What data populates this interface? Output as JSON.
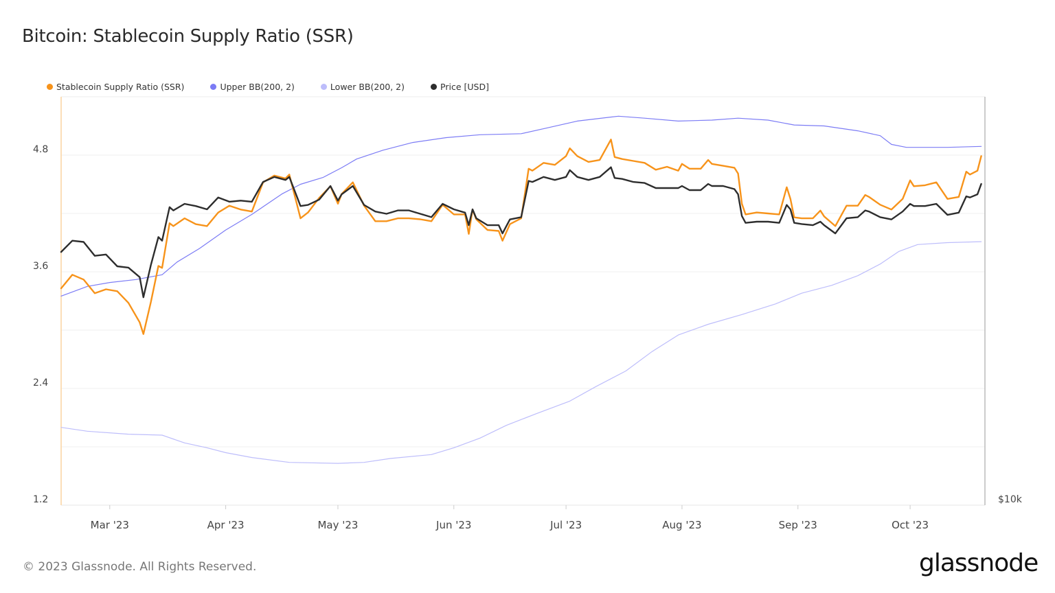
{
  "chart_data": {
    "type": "line",
    "title": "Bitcoin: Stablecoin Supply Ratio (SSR)",
    "xlim": [
      "2023-02-16",
      "2023-10-21"
    ],
    "x_ticks": [
      {
        "date": "2023-03-01",
        "label": "Mar '23"
      },
      {
        "date": "2023-04-01",
        "label": "Apr '23"
      },
      {
        "date": "2023-05-01",
        "label": "May '23"
      },
      {
        "date": "2023-06-01",
        "label": "Jun '23"
      },
      {
        "date": "2023-07-01",
        "label": "Jul '23"
      },
      {
        "date": "2023-08-01",
        "label": "Aug '23"
      },
      {
        "date": "2023-09-01",
        "label": "Sep '23"
      },
      {
        "date": "2023-10-01",
        "label": "Oct '23"
      }
    ],
    "y_left": {
      "ylim": [
        1.2,
        5.4
      ],
      "ticks": [
        1.2,
        2.4,
        3.6,
        4.8
      ],
      "tick_labels": [
        "1.2",
        "2.4",
        "3.6",
        "4.8"
      ],
      "grid_step": 0.6
    },
    "y_right": {
      "scale": "log",
      "ylim": [
        10000,
        39400
      ],
      "tick_labels": [
        "$10k"
      ]
    },
    "grid": true,
    "legend_position": "top-left",
    "series": [
      {
        "name": "Upper BB(200, 2)",
        "color": "#7b7bf5",
        "axis": "left",
        "x": [
          "2023-02-16",
          "2023-02-23",
          "2023-03-01",
          "2023-03-08",
          "2023-03-15",
          "2023-03-19",
          "2023-03-25",
          "2023-04-01",
          "2023-04-08",
          "2023-04-16",
          "2023-04-21",
          "2023-04-27",
          "2023-05-02",
          "2023-05-06",
          "2023-05-13",
          "2023-05-21",
          "2023-05-30",
          "2023-06-08",
          "2023-06-19",
          "2023-06-26",
          "2023-07-04",
          "2023-07-15",
          "2023-07-22",
          "2023-07-31",
          "2023-08-09",
          "2023-08-16",
          "2023-08-24",
          "2023-08-31",
          "2023-09-08",
          "2023-09-17",
          "2023-09-23",
          "2023-09-26",
          "2023-09-30",
          "2023-10-11",
          "2023-10-20"
        ],
        "y": [
          3.35,
          3.45,
          3.49,
          3.52,
          3.57,
          3.7,
          3.84,
          4.03,
          4.19,
          4.4,
          4.5,
          4.57,
          4.67,
          4.76,
          4.85,
          4.93,
          4.98,
          5.01,
          5.02,
          5.08,
          5.15,
          5.2,
          5.18,
          5.15,
          5.16,
          5.18,
          5.16,
          5.11,
          5.1,
          5.05,
          5.0,
          4.91,
          4.88,
          4.88,
          4.89
        ]
      },
      {
        "name": "Lower BB(200, 2)",
        "color": "#bdbdfb",
        "axis": "left",
        "x": [
          "2023-02-16",
          "2023-02-23",
          "2023-03-06",
          "2023-03-15",
          "2023-03-21",
          "2023-03-27",
          "2023-04-01",
          "2023-04-08",
          "2023-04-18",
          "2023-05-01",
          "2023-05-08",
          "2023-05-15",
          "2023-05-26",
          "2023-06-01",
          "2023-06-08",
          "2023-06-15",
          "2023-06-23",
          "2023-07-02",
          "2023-07-09",
          "2023-07-17",
          "2023-07-24",
          "2023-07-31",
          "2023-08-08",
          "2023-08-17",
          "2023-08-26",
          "2023-09-02",
          "2023-09-10",
          "2023-09-17",
          "2023-09-23",
          "2023-09-28",
          "2023-10-03",
          "2023-10-11",
          "2023-10-20"
        ],
        "y": [
          2.0,
          1.96,
          1.93,
          1.92,
          1.84,
          1.79,
          1.74,
          1.69,
          1.64,
          1.63,
          1.64,
          1.68,
          1.72,
          1.79,
          1.89,
          2.02,
          2.14,
          2.27,
          2.42,
          2.58,
          2.78,
          2.95,
          3.06,
          3.16,
          3.27,
          3.38,
          3.46,
          3.56,
          3.68,
          3.81,
          3.88,
          3.9,
          3.91
        ]
      },
      {
        "name": "Stablecoin Supply Ratio (SSR)",
        "color": "#f7931a",
        "axis": "left",
        "x": [
          "2023-02-16",
          "2023-02-19",
          "2023-02-22",
          "2023-02-25",
          "2023-02-28",
          "2023-03-03",
          "2023-03-06",
          "2023-03-09",
          "2023-03-10",
          "2023-03-12",
          "2023-03-14",
          "2023-03-15",
          "2023-03-17",
          "2023-03-18",
          "2023-03-21",
          "2023-03-24",
          "2023-03-27",
          "2023-03-30",
          "2023-04-02",
          "2023-04-05",
          "2023-04-08",
          "2023-04-11",
          "2023-04-14",
          "2023-04-17",
          "2023-04-18",
          "2023-04-20",
          "2023-04-21",
          "2023-04-23",
          "2023-04-26",
          "2023-04-29",
          "2023-05-01",
          "2023-05-02",
          "2023-05-05",
          "2023-05-08",
          "2023-05-11",
          "2023-05-14",
          "2023-05-17",
          "2023-05-20",
          "2023-05-23",
          "2023-05-26",
          "2023-05-29",
          "2023-06-01",
          "2023-06-04",
          "2023-06-05",
          "2023-06-06",
          "2023-06-07",
          "2023-06-10",
          "2023-06-13",
          "2023-06-14",
          "2023-06-16",
          "2023-06-19",
          "2023-06-21",
          "2023-06-22",
          "2023-06-25",
          "2023-06-28",
          "2023-07-01",
          "2023-07-02",
          "2023-07-04",
          "2023-07-07",
          "2023-07-10",
          "2023-07-13",
          "2023-07-14",
          "2023-07-16",
          "2023-07-19",
          "2023-07-22",
          "2023-07-25",
          "2023-07-28",
          "2023-07-31",
          "2023-08-01",
          "2023-08-03",
          "2023-08-06",
          "2023-08-08",
          "2023-08-09",
          "2023-08-12",
          "2023-08-15",
          "2023-08-16",
          "2023-08-17",
          "2023-08-18",
          "2023-08-21",
          "2023-08-24",
          "2023-08-27",
          "2023-08-29",
          "2023-08-30",
          "2023-08-31",
          "2023-09-02",
          "2023-09-05",
          "2023-09-07",
          "2023-09-08",
          "2023-09-11",
          "2023-09-14",
          "2023-09-17",
          "2023-09-19",
          "2023-09-20",
          "2023-09-23",
          "2023-09-26",
          "2023-09-29",
          "2023-10-01",
          "2023-10-02",
          "2023-10-05",
          "2023-10-08",
          "2023-10-11",
          "2023-10-14",
          "2023-10-16",
          "2023-10-17",
          "2023-10-19",
          "2023-10-20"
        ],
        "y": [
          3.43,
          3.57,
          3.52,
          3.38,
          3.42,
          3.4,
          3.28,
          3.08,
          2.96,
          3.29,
          3.66,
          3.64,
          4.1,
          4.07,
          4.15,
          4.09,
          4.07,
          4.21,
          4.28,
          4.24,
          4.22,
          4.52,
          4.59,
          4.56,
          4.6,
          4.3,
          4.15,
          4.21,
          4.36,
          4.48,
          4.3,
          4.4,
          4.52,
          4.28,
          4.12,
          4.12,
          4.15,
          4.15,
          4.14,
          4.12,
          4.29,
          4.19,
          4.19,
          3.99,
          4.24,
          4.14,
          4.03,
          4.02,
          3.92,
          4.09,
          4.15,
          4.66,
          4.64,
          4.72,
          4.7,
          4.79,
          4.87,
          4.79,
          4.73,
          4.75,
          4.96,
          4.78,
          4.76,
          4.74,
          4.72,
          4.65,
          4.68,
          4.64,
          4.71,
          4.66,
          4.66,
          4.75,
          4.71,
          4.69,
          4.67,
          4.61,
          4.3,
          4.19,
          4.21,
          4.2,
          4.19,
          4.47,
          4.35,
          4.16,
          4.15,
          4.15,
          4.23,
          4.17,
          4.07,
          4.28,
          4.28,
          4.39,
          4.37,
          4.29,
          4.24,
          4.35,
          4.54,
          4.48,
          4.49,
          4.52,
          4.35,
          4.37,
          4.63,
          4.6,
          4.64,
          4.79
        ]
      },
      {
        "name": "Price [USD]",
        "color": "#2d2d2d",
        "axis": "right",
        "x": [
          "2023-02-16",
          "2023-02-19",
          "2023-02-22",
          "2023-02-25",
          "2023-02-28",
          "2023-03-03",
          "2023-03-06",
          "2023-03-09",
          "2023-03-10",
          "2023-03-12",
          "2023-03-14",
          "2023-03-15",
          "2023-03-17",
          "2023-03-18",
          "2023-03-21",
          "2023-03-24",
          "2023-03-27",
          "2023-03-30",
          "2023-04-02",
          "2023-04-05",
          "2023-04-08",
          "2023-04-11",
          "2023-04-14",
          "2023-04-17",
          "2023-04-18",
          "2023-04-20",
          "2023-04-21",
          "2023-04-23",
          "2023-04-26",
          "2023-04-29",
          "2023-05-01",
          "2023-05-02",
          "2023-05-05",
          "2023-05-08",
          "2023-05-11",
          "2023-05-14",
          "2023-05-17",
          "2023-05-20",
          "2023-05-23",
          "2023-05-26",
          "2023-05-29",
          "2023-06-01",
          "2023-06-04",
          "2023-06-05",
          "2023-06-06",
          "2023-06-07",
          "2023-06-10",
          "2023-06-13",
          "2023-06-14",
          "2023-06-16",
          "2023-06-19",
          "2023-06-21",
          "2023-06-22",
          "2023-06-25",
          "2023-06-28",
          "2023-07-01",
          "2023-07-02",
          "2023-07-04",
          "2023-07-07",
          "2023-07-10",
          "2023-07-13",
          "2023-07-14",
          "2023-07-16",
          "2023-07-19",
          "2023-07-22",
          "2023-07-25",
          "2023-07-28",
          "2023-07-31",
          "2023-08-01",
          "2023-08-03",
          "2023-08-06",
          "2023-08-08",
          "2023-08-09",
          "2023-08-12",
          "2023-08-15",
          "2023-08-16",
          "2023-08-17",
          "2023-08-18",
          "2023-08-21",
          "2023-08-24",
          "2023-08-27",
          "2023-08-29",
          "2023-08-30",
          "2023-08-31",
          "2023-09-02",
          "2023-09-05",
          "2023-09-07",
          "2023-09-08",
          "2023-09-11",
          "2023-09-14",
          "2023-09-17",
          "2023-09-19",
          "2023-09-20",
          "2023-09-23",
          "2023-09-26",
          "2023-09-29",
          "2023-10-01",
          "2023-10-02",
          "2023-10-05",
          "2023-10-08",
          "2023-10-11",
          "2023-10-14",
          "2023-10-16",
          "2023-10-17",
          "2023-10-19",
          "2023-10-20"
        ],
        "y": [
          23400,
          24300,
          24200,
          23100,
          23200,
          22300,
          22200,
          21500,
          20100,
          22400,
          24600,
          24300,
          27200,
          26900,
          27500,
          27300,
          27000,
          28100,
          27700,
          27800,
          27700,
          29600,
          30100,
          29800,
          30100,
          28200,
          27300,
          27400,
          27900,
          29200,
          27800,
          28400,
          29200,
          27400,
          26800,
          26600,
          26900,
          26900,
          26600,
          26300,
          27500,
          27000,
          26700,
          25600,
          27000,
          26200,
          25600,
          25600,
          24900,
          26100,
          26300,
          29700,
          29600,
          30100,
          29800,
          30100,
          30800,
          30100,
          29800,
          30100,
          31100,
          30000,
          29900,
          29600,
          29500,
          29000,
          29000,
          29000,
          29200,
          28800,
          28800,
          29400,
          29200,
          29200,
          28900,
          28400,
          26400,
          25800,
          25900,
          25900,
          25800,
          27400,
          27000,
          25800,
          25700,
          25600,
          25900,
          25600,
          24900,
          26200,
          26300,
          26900,
          26800,
          26300,
          26100,
          26800,
          27500,
          27300,
          27300,
          27500,
          26500,
          26700,
          28200,
          28100,
          28400,
          29400
        ]
      }
    ]
  },
  "footer": {
    "copyright": "© 2023 Glassnode. All Rights Reserved.",
    "logo_text": "glassnode"
  }
}
